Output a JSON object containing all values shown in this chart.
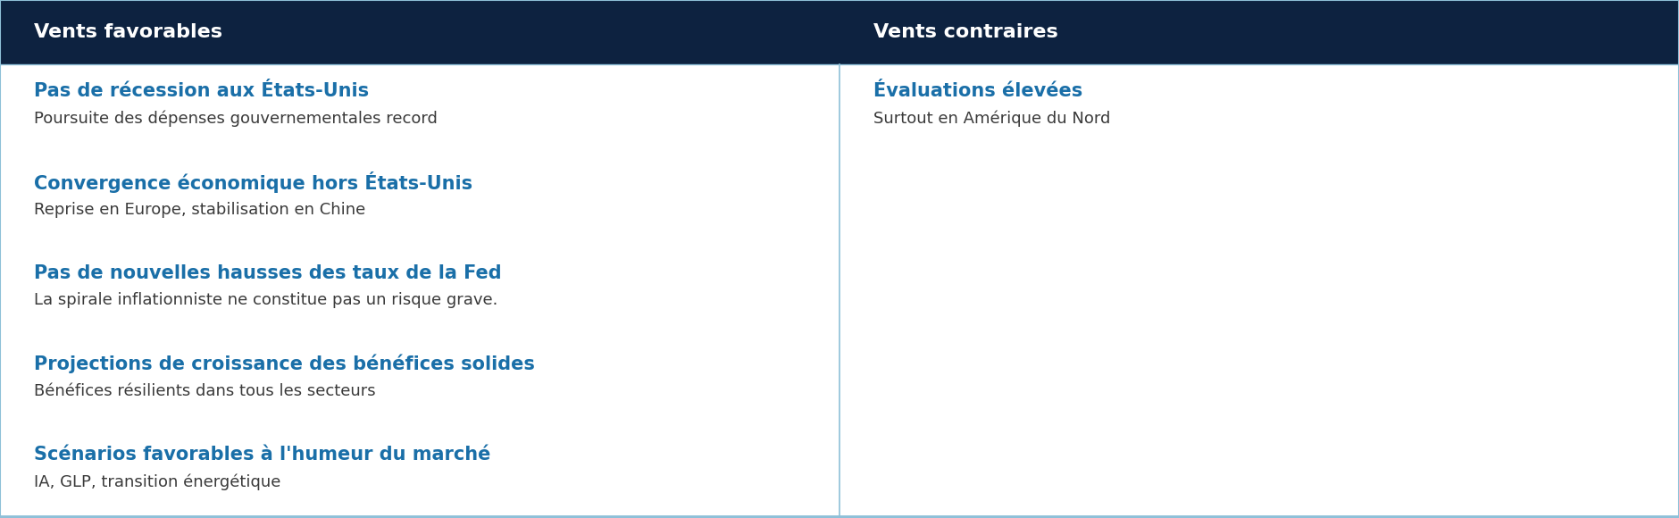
{
  "header_bg_color": "#0d2240",
  "header_text_color": "#ffffff",
  "body_bg_color": "#ffffff",
  "header_left": "Vents favorables",
  "header_right": "Vents contraires",
  "left_items": [
    {
      "title": "Pas de récession aux États-Unis",
      "subtitle": "Poursuite des dépenses gouvernementales record"
    },
    {
      "title": "Convergence économique hors États-Unis",
      "subtitle": "Reprise en Europe, stabilisation en Chine"
    },
    {
      "title": "Pas de nouvelles hausses des taux de la Fed",
      "subtitle": "La spirale inflationniste ne constitue pas un risque grave."
    },
    {
      "title": "Projections de croissance des bénéfices solides",
      "subtitle": "Bénéfices résilients dans tous les secteurs"
    },
    {
      "title": "Scénarios favorables à l'humeur du marché",
      "subtitle": "IA, GLP, transition énergétique"
    }
  ],
  "right_items": [
    {
      "title": "Évaluations élevées",
      "subtitle": "Surtout en Amérique du Nord"
    }
  ],
  "title_color": "#1a6fa8",
  "subtitle_color": "#3a3a3a",
  "divider_color": "#8ec0d8",
  "border_color": "#8ec0d8",
  "header_font_size": 16,
  "title_font_size": 15,
  "subtitle_font_size": 13,
  "fig_width": 18.8,
  "fig_height": 5.8,
  "dpi": 100
}
